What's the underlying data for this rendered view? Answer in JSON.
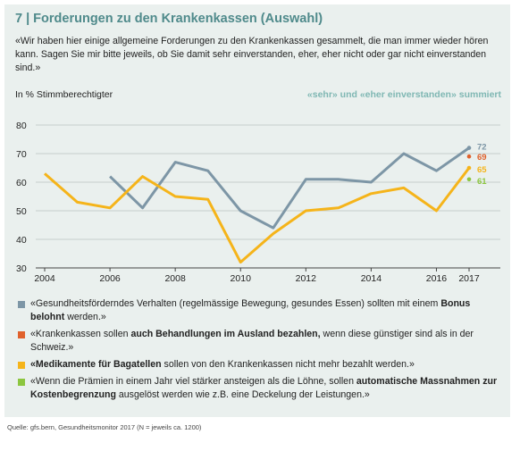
{
  "header": {
    "title": "7 | Forderungen zu den Krankenkassen (Auswahl)",
    "question": "«Wir haben hier einige allgemeine Forderungen zu den Krankenkassen gesammelt, die man immer wieder hören kann. Sagen Sie mir bitte jeweils, ob Sie damit sehr einverstanden, eher, eher nicht oder gar nicht einverstanden sind.»"
  },
  "chart_data": {
    "type": "line",
    "ylabel": "In % Stimmberechtigter",
    "note": "«sehr» und «eher einverstanden» summiert",
    "x_ticks": [
      "2004",
      "2006",
      "2008",
      "2010",
      "2012",
      "2014",
      "2016",
      "2017"
    ],
    "ylim": [
      30,
      80
    ],
    "y_ticks": [
      30,
      40,
      50,
      60,
      70,
      80
    ],
    "grid": true,
    "series": [
      {
        "key": "bonus",
        "color": "#7d96a6",
        "points": [
          [
            2006,
            62
          ],
          [
            2007,
            51
          ],
          [
            2008,
            67
          ],
          [
            2009,
            64
          ],
          [
            2010,
            50
          ],
          [
            2011,
            44
          ],
          [
            2012,
            61
          ],
          [
            2013,
            61
          ],
          [
            2014,
            60
          ],
          [
            2015,
            70
          ],
          [
            2016,
            64
          ],
          [
            2017,
            72
          ]
        ],
        "end_label": "72"
      },
      {
        "key": "ausland",
        "color": "#e0612c",
        "points": [
          [
            2017,
            69
          ]
        ],
        "end_label": "69"
      },
      {
        "key": "bagatellen",
        "color": "#f5b41a",
        "points": [
          [
            2004,
            63
          ],
          [
            2005,
            53
          ],
          [
            2006,
            51
          ],
          [
            2007,
            62
          ],
          [
            2008,
            55
          ],
          [
            2009,
            54
          ],
          [
            2010,
            32
          ],
          [
            2011,
            42
          ],
          [
            2012,
            50
          ],
          [
            2013,
            51
          ],
          [
            2014,
            56
          ],
          [
            2015,
            58
          ],
          [
            2016,
            50
          ],
          [
            2017,
            65
          ]
        ],
        "end_label": "65"
      },
      {
        "key": "praemien",
        "color": "#8cc63f",
        "points": [
          [
            2017,
            61
          ]
        ],
        "end_label": "61"
      }
    ]
  },
  "legend": [
    {
      "color": "#7d96a6",
      "parts": [
        {
          "text": "«Gesundheitsförderndes Verhalten (regelmässige Bewegung, gesundes Essen) sollten mit einem ",
          "bold": false
        },
        {
          "text": "Bonus belohnt",
          "bold": true
        },
        {
          "text": " werden.»",
          "bold": false
        }
      ]
    },
    {
      "color": "#e0612c",
      "parts": [
        {
          "text": "«Krankenkassen sollen ",
          "bold": false
        },
        {
          "text": "auch Behandlungen im Ausland bezahlen,",
          "bold": true
        },
        {
          "text": " wenn diese günstiger sind als in der Schweiz.»",
          "bold": false
        }
      ]
    },
    {
      "color": "#f5b41a",
      "parts": [
        {
          "text": "«Medikamente für Bagatellen",
          "bold": true
        },
        {
          "text": " sollen von den Krankenkassen nicht mehr bezahlt werden.»",
          "bold": false
        }
      ]
    },
    {
      "color": "#8cc63f",
      "parts": [
        {
          "text": "«Wenn die Prämien in einem Jahr viel stärker ansteigen als die Löhne, sollen ",
          "bold": false
        },
        {
          "text": "automatische Massnahmen zur Kostenbegrenzung",
          "bold": true
        },
        {
          "text": " ausgelöst werden wie z.B. eine Deckelung der Leistungen.»",
          "bold": false
        }
      ]
    }
  ],
  "source": "Quelle: gfs.bern, Gesundheitsmonitor 2017 (N = jeweils ca. 1200)"
}
